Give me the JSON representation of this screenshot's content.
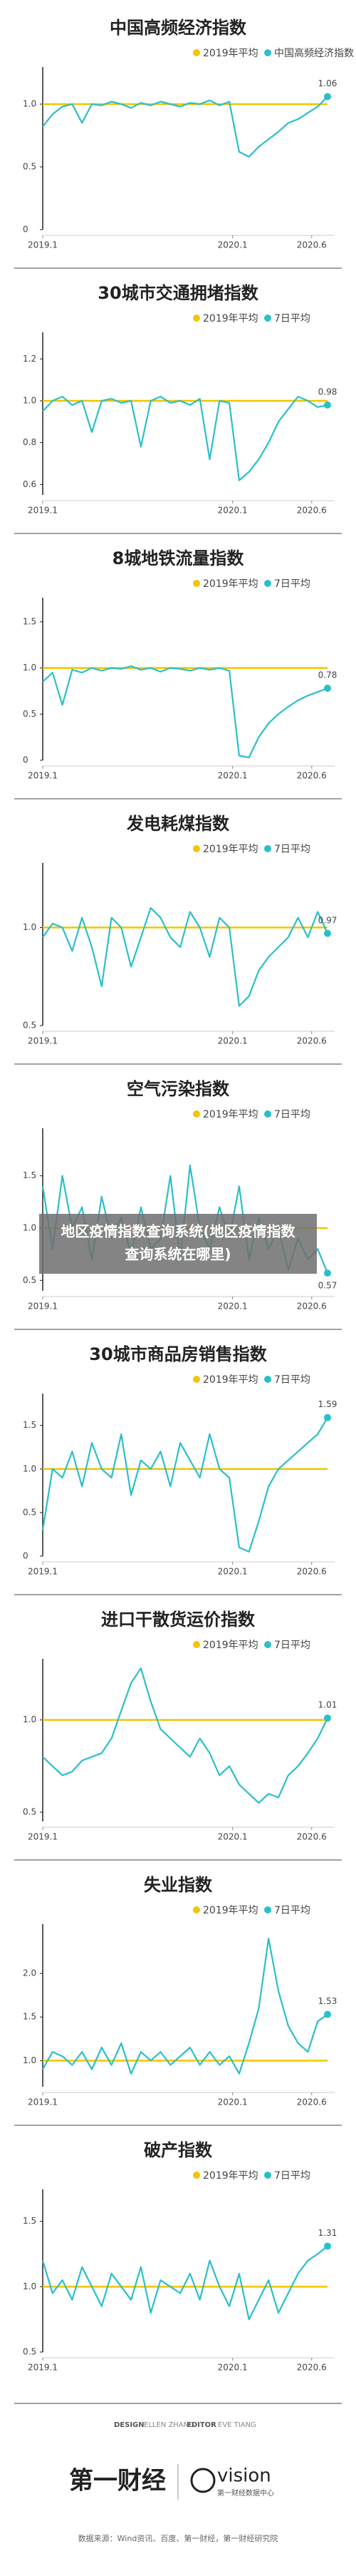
{
  "chart_data": [
    {
      "type": "line",
      "title": "中国高频经济指数",
      "reference": {
        "name": "2019年平均",
        "color": "#f2c500",
        "value": 1
      },
      "series": [
        {
          "name": "中国高频经济指数",
          "color": "#2bbfc9",
          "values": [
            0.82,
            0.92,
            0.98,
            1.0,
            0.85,
            1.0,
            0.99,
            1.02,
            1.0,
            0.97,
            1.01,
            0.99,
            1.02,
            1.0,
            0.98,
            1.01,
            1.0,
            1.03,
            0.99,
            1.02,
            0.62,
            0.58,
            0.66,
            0.72,
            0.78,
            0.85,
            0.88,
            0.93,
            0.98,
            1.06
          ]
        }
      ],
      "xlim": [
        0,
        18
      ],
      "xticks": [
        {
          "value": 0,
          "label": "2019.1"
        },
        {
          "value": 12,
          "label": "2020.1"
        },
        {
          "value": 17,
          "label": "2020.6"
        }
      ],
      "ylim": [
        0,
        1.25
      ],
      "yticks": [
        0,
        0.5,
        {
          "value": 1,
          "label": "1.0"
        }
      ]
    },
    {
      "type": "line",
      "title": "30城市交通拥堵指数",
      "reference": {
        "name": "2019年平均",
        "color": "#f2c500",
        "value": 1
      },
      "series": [
        {
          "name": "7日平均",
          "color": "#2bbfc9",
          "values": [
            0.95,
            1.0,
            1.02,
            0.98,
            1.0,
            0.85,
            1.0,
            1.01,
            0.99,
            1.0,
            0.78,
            1.0,
            1.02,
            0.99,
            1.0,
            0.98,
            1.01,
            0.72,
            1.0,
            0.99,
            0.62,
            0.66,
            0.72,
            0.8,
            0.9,
            0.96,
            1.02,
            1.0,
            0.97,
            0.98
          ]
        }
      ],
      "xlim": [
        0,
        18
      ],
      "xticks": [
        {
          "value": 0,
          "label": "2019.1"
        },
        {
          "value": 12,
          "label": "2020.1"
        },
        {
          "value": 17,
          "label": "2020.6"
        }
      ],
      "ylim": [
        0.55,
        1.3
      ],
      "yticks": [
        0.6,
        0.8,
        {
          "value": 1,
          "label": "1.0"
        },
        1.2
      ]
    },
    {
      "type": "line",
      "title": "8城地铁流量指数",
      "reference": {
        "name": "2019年平均",
        "color": "#f2c500",
        "value": 1
      },
      "series": [
        {
          "name": "7日平均",
          "color": "#2bbfc9",
          "values": [
            0.85,
            0.95,
            0.6,
            0.98,
            0.95,
            1.0,
            0.97,
            1.0,
            0.99,
            1.02,
            0.98,
            1.0,
            0.96,
            1.0,
            0.99,
            0.97,
            1.0,
            0.98,
            1.0,
            0.97,
            0.05,
            0.03,
            0.25,
            0.4,
            0.5,
            0.58,
            0.65,
            0.7,
            0.74,
            0.78
          ]
        }
      ],
      "xlim": [
        0,
        18
      ],
      "xticks": [
        {
          "value": 0,
          "label": "2019.1"
        },
        {
          "value": 12,
          "label": "2020.1"
        },
        {
          "value": 17,
          "label": "2020.6"
        }
      ],
      "ylim": [
        0,
        1.7
      ],
      "yticks": [
        0,
        0.5,
        {
          "value": 1,
          "label": "1.0"
        },
        1.5
      ]
    },
    {
      "type": "line",
      "title": "发电耗煤指数",
      "reference": {
        "name": "2019年平均",
        "color": "#f2c500",
        "value": 1
      },
      "series": [
        {
          "name": "7日平均",
          "color": "#2bbfc9",
          "values": [
            0.95,
            1.02,
            1.0,
            0.88,
            1.05,
            0.9,
            0.7,
            1.05,
            1.0,
            0.8,
            0.95,
            1.1,
            1.05,
            0.95,
            0.9,
            1.08,
            1.0,
            0.85,
            1.05,
            1.0,
            0.6,
            0.65,
            0.78,
            0.85,
            0.9,
            0.95,
            1.05,
            0.95,
            1.08,
            0.97
          ]
        }
      ],
      "xlim": [
        0,
        18
      ],
      "xticks": [
        {
          "value": 0,
          "label": "2019.1"
        },
        {
          "value": 12,
          "label": "2020.1"
        },
        {
          "value": 17,
          "label": "2020.6"
        }
      ],
      "ylim": [
        0.5,
        1.3
      ],
      "yticks": [
        0.5,
        {
          "value": 1,
          "label": "1.0"
        }
      ]
    },
    {
      "type": "line",
      "title": "空气污染指数",
      "reference": {
        "name": "2019年平均",
        "color": "#f2c500",
        "value": 1
      },
      "series": [
        {
          "name": "7日平均",
          "color": "#2bbfc9",
          "values": [
            1.4,
            0.8,
            1.5,
            1.0,
            1.2,
            0.7,
            1.3,
            0.9,
            1.1,
            0.75,
            1.2,
            0.8,
            0.9,
            1.5,
            0.7,
            1.6,
            1.0,
            0.8,
            1.2,
            0.9,
            1.4,
            0.7,
            1.1,
            0.8,
            1.0,
            0.6,
            0.9,
            0.7,
            0.8,
            0.57
          ]
        }
      ],
      "xlim": [
        0,
        18
      ],
      "xticks": [
        {
          "value": 0,
          "label": "2019.1"
        },
        {
          "value": 12,
          "label": "2020.1"
        },
        {
          "value": 17,
          "label": "2020.6"
        }
      ],
      "ylim": [
        0.4,
        1.9
      ],
      "yticks": [
        0.5,
        {
          "value": 1,
          "label": "1.0"
        },
        1.5
      ]
    },
    {
      "type": "line",
      "title": "30城市商品房销售指数",
      "reference": {
        "name": "2019年平均",
        "color": "#f2c500",
        "value": 1
      },
      "series": [
        {
          "name": "7日平均",
          "color": "#2bbfc9",
          "values": [
            0.3,
            1.0,
            0.9,
            1.2,
            0.8,
            1.3,
            1.0,
            0.9,
            1.4,
            0.7,
            1.1,
            1.0,
            1.2,
            0.8,
            1.3,
            1.1,
            0.9,
            1.4,
            1.0,
            0.9,
            0.1,
            0.05,
            0.4,
            0.8,
            1.0,
            1.1,
            1.2,
            1.3,
            1.4,
            1.59
          ]
        }
      ],
      "xlim": [
        0,
        18
      ],
      "xticks": [
        {
          "value": 0,
          "label": "2019.1"
        },
        {
          "value": 12,
          "label": "2020.1"
        },
        {
          "value": 17,
          "label": "2020.6"
        }
      ],
      "ylim": [
        0,
        1.8
      ],
      "yticks": [
        0,
        0.5,
        {
          "value": 1,
          "label": "1.0"
        },
        1.5
      ]
    },
    {
      "type": "line",
      "title": "进口干散货运价指数",
      "reference": {
        "name": "2019年平均",
        "color": "#f2c500",
        "value": 1
      },
      "series": [
        {
          "name": "7日平均",
          "color": "#2bbfc9",
          "values": [
            0.8,
            0.75,
            0.7,
            0.72,
            0.78,
            0.8,
            0.82,
            0.9,
            1.05,
            1.2,
            1.28,
            1.1,
            0.95,
            0.9,
            0.85,
            0.8,
            0.9,
            0.82,
            0.7,
            0.75,
            0.65,
            0.6,
            0.55,
            0.6,
            0.58,
            0.7,
            0.75,
            0.82,
            0.9,
            1.01
          ]
        }
      ],
      "xlim": [
        0,
        18
      ],
      "xticks": [
        {
          "value": 0,
          "label": "2019.1"
        },
        {
          "value": 12,
          "label": "2020.1"
        },
        {
          "value": 17,
          "label": "2020.6"
        }
      ],
      "ylim": [
        0.45,
        1.3
      ],
      "yticks": [
        0.5,
        {
          "value": 1,
          "label": "1.0"
        }
      ]
    },
    {
      "type": "line",
      "title": "失业指数",
      "reference": {
        "name": "2019年平均",
        "color": "#f2c500",
        "value": 1
      },
      "series": [
        {
          "name": "7日平均",
          "color": "#2bbfc9",
          "values": [
            0.9,
            1.1,
            1.05,
            0.95,
            1.1,
            0.9,
            1.15,
            0.95,
            1.2,
            0.85,
            1.1,
            1.0,
            1.1,
            0.95,
            1.05,
            1.15,
            0.95,
            1.1,
            0.95,
            1.05,
            0.85,
            1.2,
            1.6,
            2.4,
            1.8,
            1.4,
            1.2,
            1.1,
            1.45,
            1.53
          ]
        }
      ],
      "xlim": [
        0,
        18
      ],
      "xticks": [
        {
          "value": 0,
          "label": "2019.1"
        },
        {
          "value": 12,
          "label": "2020.1"
        },
        {
          "value": 17,
          "label": "2020.6"
        }
      ],
      "ylim": [
        0.7,
        2.5
      ],
      "yticks": [
        {
          "value": 1,
          "label": "1.0"
        },
        1.5,
        {
          "value": 2,
          "label": "2.0"
        }
      ]
    },
    {
      "type": "line",
      "title": "破产指数",
      "reference": {
        "name": "2019年平均",
        "color": "#f2c500",
        "value": 1
      },
      "series": [
        {
          "name": "7日平均",
          "color": "#2bbfc9",
          "values": [
            1.2,
            0.95,
            1.05,
            0.9,
            1.15,
            1.0,
            0.85,
            1.1,
            1.0,
            0.9,
            1.15,
            0.8,
            1.05,
            1.0,
            0.95,
            1.1,
            0.9,
            1.2,
            1.0,
            0.85,
            1.1,
            0.75,
            0.9,
            1.05,
            0.8,
            0.95,
            1.1,
            1.2,
            1.25,
            1.31
          ]
        }
      ],
      "xlim": [
        0,
        18
      ],
      "xticks": [
        {
          "value": 0,
          "label": "2019.1"
        },
        {
          "value": 12,
          "label": "2020.1"
        },
        {
          "value": 17,
          "label": "2020.6"
        }
      ],
      "ylim": [
        0.5,
        1.7
      ],
      "yticks": [
        0.5,
        {
          "value": 1,
          "label": "1.0"
        },
        1.5
      ]
    }
  ],
  "banner": {
    "line1": "地区疫情指数查询系统(地区疫情指数",
    "line2": "查询系统在哪里)"
  },
  "footer": {
    "design": "DESIGN",
    "designer": "ELLEN ZHANG",
    "editor": "EDITOR",
    "editor_name": "EVE TIANG",
    "logo1": "第一财经",
    "logo2": "vision",
    "logo2_sub": "第一财经数据中心",
    "source": "数据来源：Wind资讯、百度、第一财经，第一财经研究院"
  }
}
